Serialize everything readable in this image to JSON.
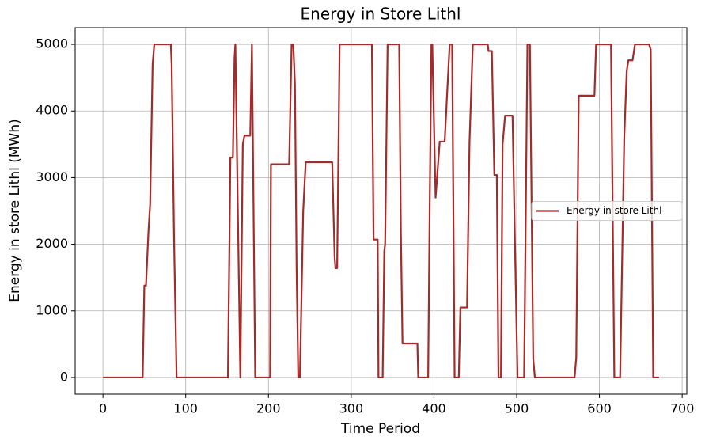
{
  "chart_data": {
    "type": "line",
    "title": "Energy in Store Lithl",
    "xlabel": "Time Period",
    "ylabel": "Energy in store Lithl (MWh)",
    "x": [
      0,
      48,
      50,
      52,
      55,
      57,
      60,
      62,
      82,
      83,
      86,
      89,
      151,
      154,
      157,
      159,
      160,
      166,
      169,
      171,
      178,
      180,
      184,
      202,
      203,
      225,
      228,
      230,
      232,
      234,
      236,
      238,
      242,
      245,
      277,
      280,
      281,
      283,
      286,
      325,
      327,
      332,
      333,
      338,
      340,
      341,
      344,
      358,
      360,
      362,
      380,
      381,
      393,
      395,
      397,
      398,
      402,
      407,
      413,
      419,
      422,
      425,
      430,
      432,
      440,
      443,
      447,
      465,
      466,
      470,
      473,
      476,
      478,
      481,
      483,
      486,
      495,
      501,
      509,
      513,
      516,
      520,
      522,
      570,
      572,
      575,
      594,
      596,
      614,
      618,
      625,
      630,
      633,
      635,
      640,
      643,
      660,
      662,
      665,
      672
    ],
    "series": [
      {
        "name": "Energy in store Lithl",
        "color": "#a52a2a",
        "values": [
          0,
          0,
          1380,
          1380,
          2200,
          2600,
          4700,
          5000,
          5000,
          4700,
          2000,
          0,
          0,
          3300,
          3300,
          4800,
          5000,
          0,
          3500,
          3630,
          3630,
          5000,
          0,
          0,
          3200,
          3200,
          5000,
          5000,
          4400,
          1650,
          0,
          0,
          2500,
          3230,
          3230,
          1800,
          1640,
          1640,
          5000,
          5000,
          2070,
          2070,
          0,
          0,
          1900,
          2000,
          5000,
          5000,
          2200,
          510,
          510,
          0,
          0,
          2700,
          5000,
          5000,
          2700,
          3540,
          3540,
          5000,
          5000,
          0,
          0,
          1050,
          1050,
          3530,
          5000,
          5000,
          4900,
          4900,
          3040,
          3040,
          0,
          0,
          3500,
          3930,
          3930,
          0,
          0,
          5000,
          5000,
          280,
          0,
          0,
          300,
          4230,
          4230,
          5000,
          5000,
          0,
          0,
          3600,
          4600,
          4760,
          4760,
          5000,
          5000,
          4920,
          0,
          0
        ]
      }
    ],
    "xlim": [
      -33.6,
      705.6
    ],
    "ylim": [
      -250,
      5250
    ],
    "xticks": [
      0,
      100,
      200,
      300,
      400,
      500,
      600,
      700
    ],
    "yticks": [
      0,
      1000,
      2000,
      3000,
      4000,
      5000
    ],
    "grid": true,
    "legend": "center right"
  }
}
